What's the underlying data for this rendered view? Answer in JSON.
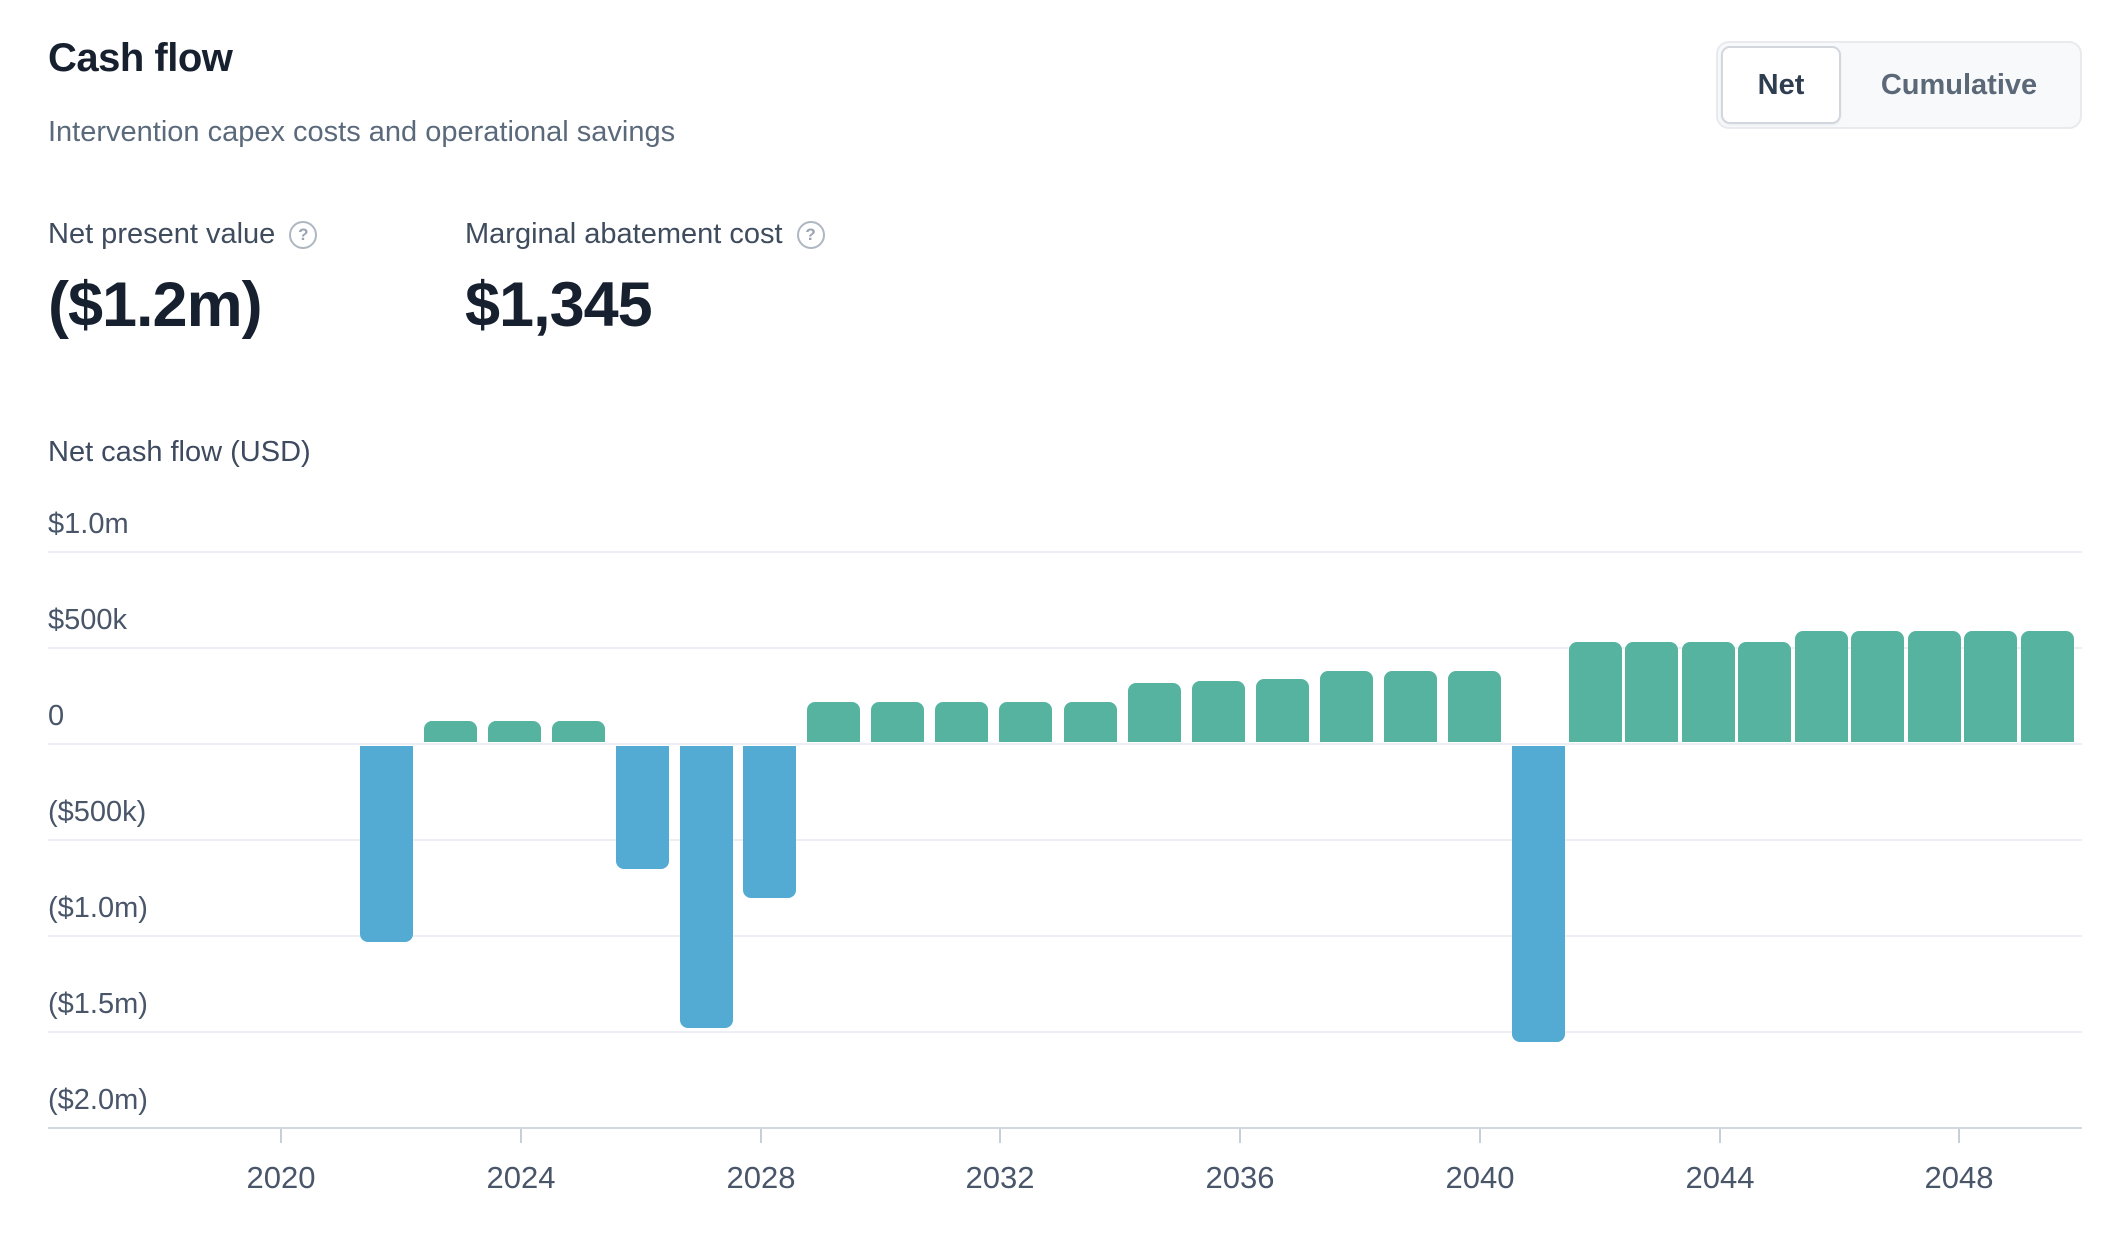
{
  "header": {
    "title": "Cash flow",
    "subtitle": "Intervention capex costs and operational savings"
  },
  "toggle": {
    "options": [
      {
        "label": "Net",
        "selected": true
      },
      {
        "label": "Cumulative",
        "selected": false
      }
    ]
  },
  "stats": [
    {
      "label": "Net present value",
      "value": "($1.2m)",
      "help_icon": "?"
    },
    {
      "label": "Marginal abatement cost",
      "value": "$1,345",
      "help_icon": "?"
    }
  ],
  "chart_data": {
    "type": "bar",
    "title": "Net cash flow (USD)",
    "ylabel": "Net cash flow (USD)",
    "units": "USD millions",
    "categories": [
      2021,
      2022,
      2023,
      2024,
      2025,
      2026,
      2027,
      2028,
      2029,
      2030,
      2031,
      2032,
      2033,
      2034,
      2035,
      2036,
      2037,
      2038,
      2039,
      2040,
      2041,
      2042,
      2043,
      2044,
      2045,
      2046,
      2047,
      2048
    ],
    "values": [
      -1.03,
      0.12,
      0.12,
      0.12,
      -0.65,
      -1.48,
      -0.8,
      0.22,
      0.22,
      0.22,
      0.22,
      0.22,
      0.32,
      0.33,
      0.34,
      0.38,
      0.38,
      0.38,
      -1.55,
      0.53,
      0.53,
      0.53,
      0.53,
      0.59,
      0.59,
      0.59,
      0.59,
      0.59
    ],
    "series": [
      {
        "name": "Net cash flow",
        "values_note": "positive = operational savings (teal), negative = capex (blue)"
      }
    ],
    "y_ticks": [
      {
        "label": "$1.0m",
        "value": 1.0
      },
      {
        "label": "$500k",
        "value": 0.5
      },
      {
        "label": "0",
        "value": 0.0
      },
      {
        "label": "($500k)",
        "value": -0.5
      },
      {
        "label": "($1.0m)",
        "value": -1.0
      },
      {
        "label": "($1.5m)",
        "value": -1.5
      },
      {
        "label": "($2.0m)",
        "value": -2.0
      }
    ],
    "x_ticks": [
      {
        "label": "2020",
        "year": 2020
      },
      {
        "label": "2024",
        "year": 2024
      },
      {
        "label": "2028",
        "year": 2028
      },
      {
        "label": "2032",
        "year": 2032
      },
      {
        "label": "2036",
        "year": 2036
      },
      {
        "label": "2040",
        "year": 2040
      },
      {
        "label": "2044",
        "year": 2044
      },
      {
        "label": "2048",
        "year": 2048
      }
    ],
    "ylim": [
      -2.0,
      1.0
    ],
    "grid": true,
    "legend": "none",
    "colors": {
      "positive": "#55b3a0",
      "negative": "#53aad2"
    }
  }
}
